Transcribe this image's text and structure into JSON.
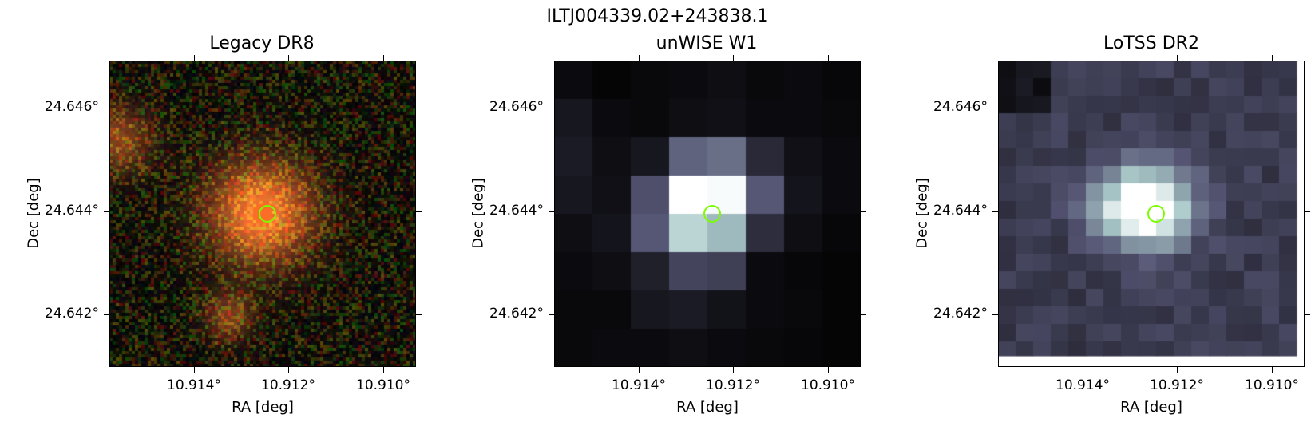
{
  "chart_data": {
    "type": "heatmap",
    "title": "ILTJ004339.02+243838.1",
    "marker_color": "#7cfc00",
    "panels": [
      {
        "title": "Legacy DR8",
        "xlabel": "RA [deg]",
        "ylabel": "Dec [deg]",
        "xticks": [
          "10.914°",
          "10.912°",
          "10.910°"
        ],
        "yticks": [
          "24.646°",
          "24.644°",
          "24.642°"
        ],
        "colormap": "rgb-composite",
        "source_ra": 10.9125,
        "source_dec": 24.6439
      },
      {
        "title": "unWISE W1",
        "xlabel": "RA [deg]",
        "ylabel": "Dec [deg]",
        "xticks": [
          "10.914°",
          "10.912°",
          "10.910°"
        ],
        "yticks": [
          "24.646°",
          "24.644°",
          "24.642°"
        ],
        "colormap": "bone",
        "source_ra": 10.9125,
        "source_dec": 24.6439
      },
      {
        "title": "LoTSS DR2",
        "xlabel": "RA [deg]",
        "ylabel": "Dec [deg]",
        "xticks": [
          "10.914°",
          "10.912°",
          "10.910°"
        ],
        "yticks": [
          "24.646°",
          "24.644°",
          "24.642°"
        ],
        "colormap": "bone",
        "source_ra": 10.9125,
        "source_dec": 24.6439
      }
    ],
    "ra_range": [
      10.9159,
      10.9093
    ],
    "dec_range": [
      24.6409,
      24.6469
    ]
  }
}
